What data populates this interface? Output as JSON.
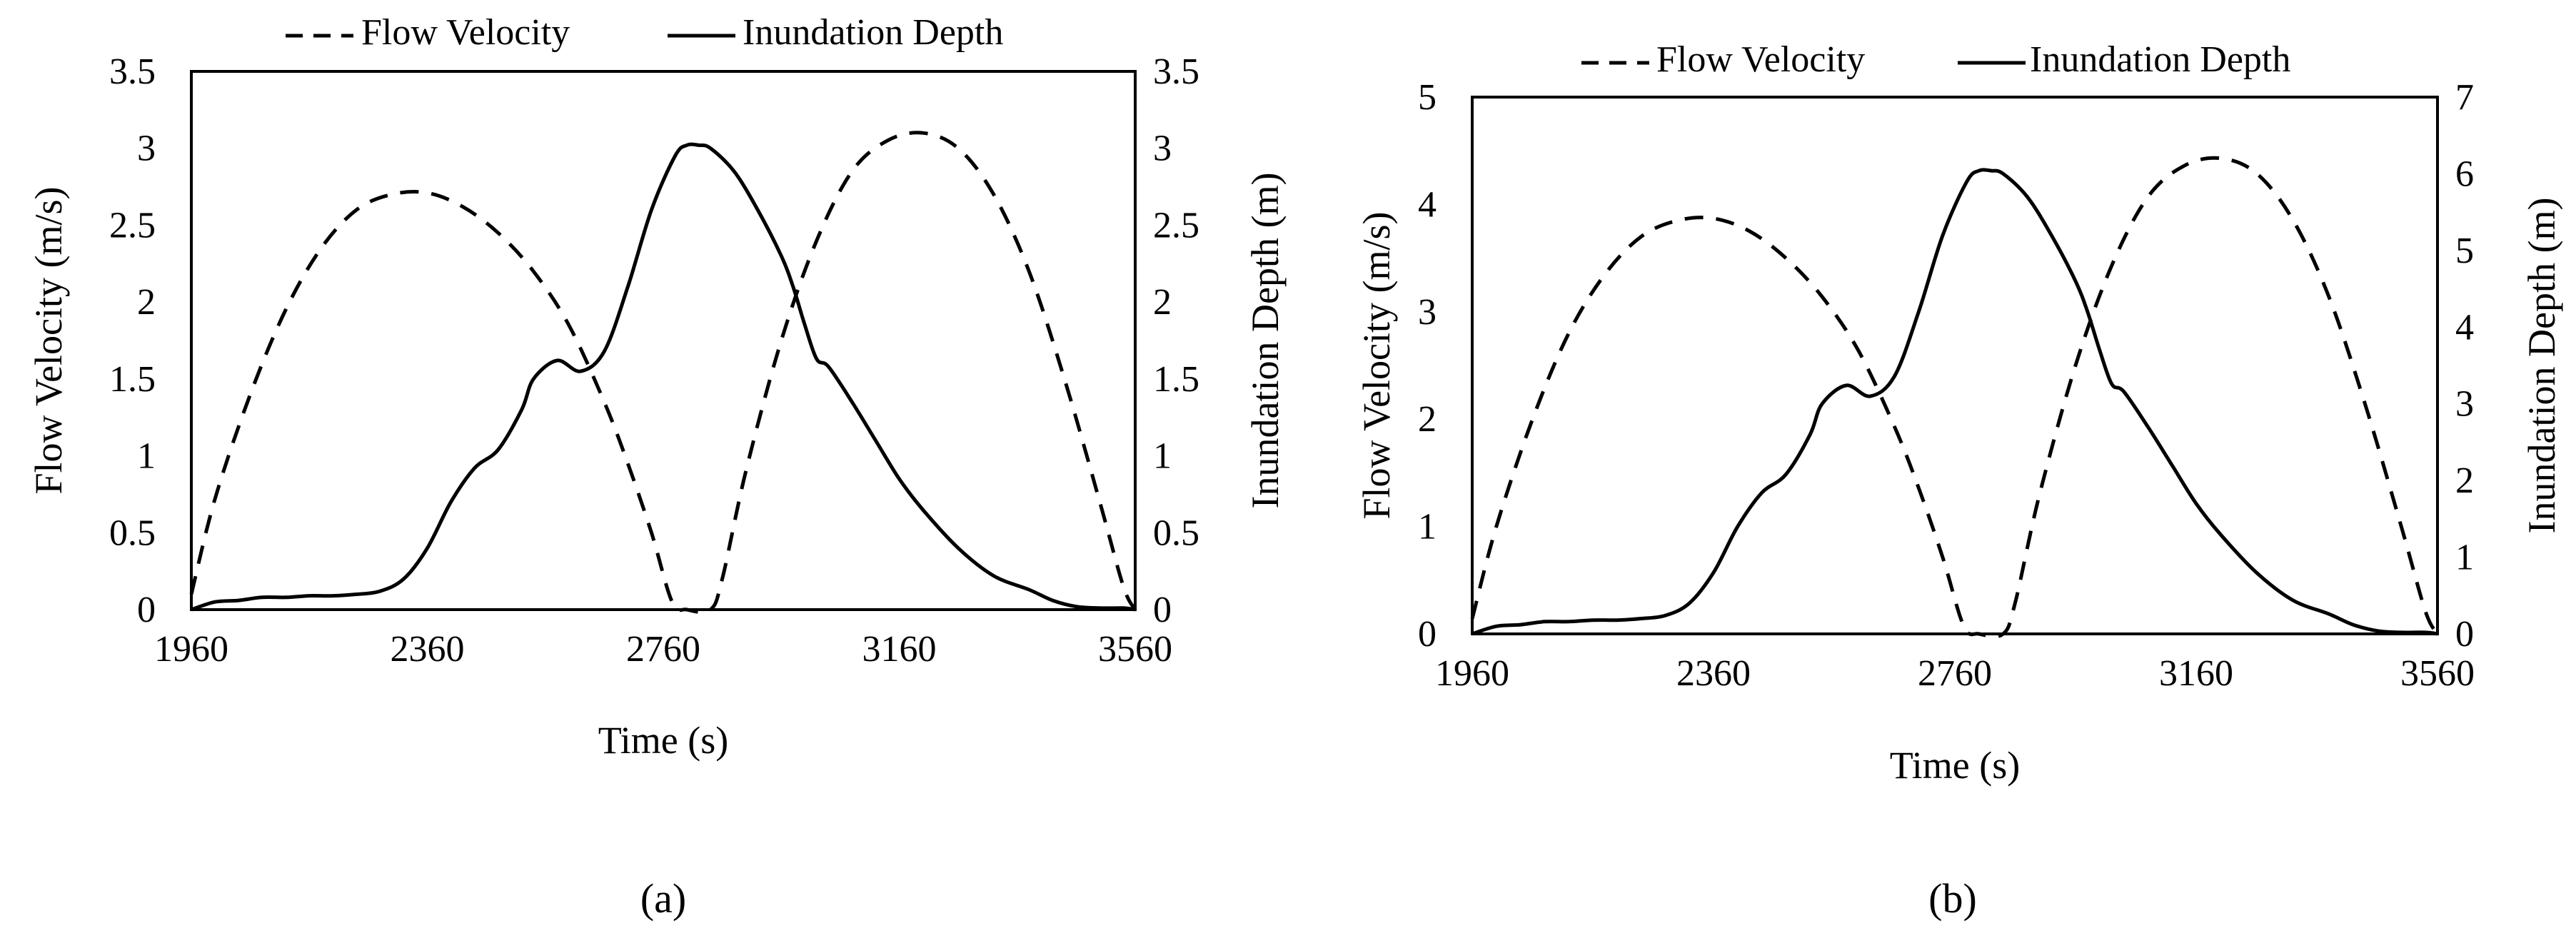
{
  "chart_data": [
    {
      "type": "line",
      "panel_label": "(a)",
      "xlabel": "Time (s)",
      "ylabel_left": "Flow Velocity (m/s)",
      "ylabel_right": "Inundation Depth (m)",
      "xlim": [
        1960,
        3560
      ],
      "ylim_left": [
        0,
        3.5
      ],
      "ylim_right": [
        0,
        3.5
      ],
      "x_ticks": [
        1960,
        2360,
        2760,
        3160,
        3560
      ],
      "y_ticks_left": [
        0,
        0.5,
        1,
        1.5,
        2,
        2.5,
        3,
        3.5
      ],
      "y_ticks_left_labels": [
        "0",
        "0.5",
        "1",
        "1.5",
        "2",
        "2.5",
        "3",
        "3.5"
      ],
      "y_ticks_right": [
        0,
        0.5,
        1,
        1.5,
        2,
        2.5,
        3,
        3.5
      ],
      "y_ticks_right_labels": [
        "0",
        "0.5",
        "1",
        "1.5",
        "2",
        "2.5",
        "3",
        "3.5"
      ],
      "legend_position": "top",
      "series": [
        {
          "name": "Flow Velocity",
          "axis": "left",
          "style": "dashed",
          "x": [
            1960,
            2000,
            2060,
            2120,
            2180,
            2240,
            2300,
            2360,
            2420,
            2480,
            2540,
            2600,
            2660,
            2700,
            2740,
            2775,
            2800,
            2840,
            2860,
            2900,
            2960,
            3020,
            3080,
            3140,
            3200,
            3260,
            3320,
            3380,
            3440,
            3500,
            3540,
            3560
          ],
          "y": [
            0.1,
            0.72,
            1.4,
            1.95,
            2.35,
            2.6,
            2.7,
            2.71,
            2.62,
            2.45,
            2.2,
            1.85,
            1.35,
            0.95,
            0.5,
            0.05,
            0,
            0,
            0.2,
            0.9,
            1.75,
            2.4,
            2.85,
            3.05,
            3.1,
            3.0,
            2.7,
            2.2,
            1.5,
            0.7,
            0.15,
            0
          ]
        },
        {
          "name": "Inundation Depth",
          "axis": "right",
          "style": "solid",
          "x": [
            1960,
            2000,
            2040,
            2080,
            2120,
            2160,
            2200,
            2240,
            2280,
            2320,
            2360,
            2400,
            2440,
            2480,
            2520,
            2540,
            2580,
            2620,
            2660,
            2700,
            2740,
            2780,
            2800,
            2820,
            2840,
            2880,
            2920,
            2960,
            2980,
            3000,
            3020,
            3040,
            3080,
            3120,
            3160,
            3200,
            3260,
            3320,
            3380,
            3420,
            3460,
            3500,
            3540,
            3560
          ],
          "y": [
            0,
            0.05,
            0.06,
            0.08,
            0.08,
            0.09,
            0.09,
            0.1,
            0.12,
            0.2,
            0.4,
            0.7,
            0.92,
            1.04,
            1.3,
            1.5,
            1.62,
            1.55,
            1.68,
            2.1,
            2.6,
            2.95,
            3.02,
            3.02,
            3.0,
            2.85,
            2.6,
            2.3,
            2.1,
            1.85,
            1.63,
            1.58,
            1.35,
            1.1,
            0.85,
            0.65,
            0.4,
            0.22,
            0.13,
            0.06,
            0.02,
            0.01,
            0.01,
            0
          ]
        }
      ]
    },
    {
      "type": "line",
      "panel_label": "(b)",
      "xlabel": "Time (s)",
      "ylabel_left": "Flow Velocity (m/s)",
      "ylabel_right": "Inundation Depth (m)",
      "xlim": [
        1960,
        3560
      ],
      "ylim_left": [
        0,
        5
      ],
      "ylim_right": [
        0,
        7
      ],
      "x_ticks": [
        1960,
        2360,
        2760,
        3160,
        3560
      ],
      "y_ticks_left": [
        0,
        1,
        2,
        3,
        4,
        5
      ],
      "y_ticks_left_labels": [
        "0",
        "1",
        "2",
        "3",
        "4",
        "5"
      ],
      "y_ticks_right": [
        0,
        1,
        2,
        3,
        4,
        5,
        6,
        7
      ],
      "y_ticks_right_labels": [
        "0",
        "1",
        "2",
        "3",
        "4",
        "5",
        "6",
        "7"
      ],
      "legend_position": "top",
      "series": [
        {
          "name": "Flow Velocity",
          "axis": "left",
          "style": "dashed",
          "x": [
            1960,
            2000,
            2060,
            2120,
            2180,
            2240,
            2300,
            2360,
            2420,
            2480,
            2540,
            2600,
            2660,
            2700,
            2740,
            2775,
            2800,
            2840,
            2860,
            2900,
            2960,
            3020,
            3080,
            3140,
            3200,
            3260,
            3320,
            3380,
            3440,
            3500,
            3540,
            3560
          ],
          "y": [
            0.14,
            1.0,
            2.0,
            2.8,
            3.35,
            3.7,
            3.85,
            3.87,
            3.75,
            3.5,
            3.14,
            2.64,
            1.93,
            1.36,
            0.71,
            0.07,
            0,
            0,
            0.29,
            1.29,
            2.5,
            3.43,
            4.07,
            4.36,
            4.43,
            4.29,
            3.86,
            3.14,
            2.14,
            1.0,
            0.21,
            0
          ]
        },
        {
          "name": "Inundation Depth",
          "axis": "right",
          "style": "solid",
          "x": [
            1960,
            2000,
            2040,
            2080,
            2120,
            2160,
            2200,
            2240,
            2280,
            2320,
            2360,
            2400,
            2440,
            2480,
            2520,
            2540,
            2580,
            2620,
            2660,
            2700,
            2740,
            2780,
            2800,
            2820,
            2840,
            2880,
            2920,
            2960,
            2980,
            3000,
            3020,
            3040,
            3080,
            3120,
            3160,
            3200,
            3260,
            3320,
            3380,
            3420,
            3460,
            3500,
            3540,
            3560
          ],
          "y": [
            0,
            0.1,
            0.12,
            0.16,
            0.16,
            0.18,
            0.18,
            0.2,
            0.24,
            0.4,
            0.8,
            1.4,
            1.84,
            2.08,
            2.6,
            3.0,
            3.24,
            3.1,
            3.36,
            4.2,
            5.2,
            5.9,
            6.04,
            6.04,
            6.0,
            5.7,
            5.2,
            4.6,
            4.2,
            3.7,
            3.26,
            3.16,
            2.7,
            2.2,
            1.7,
            1.3,
            0.8,
            0.44,
            0.26,
            0.12,
            0.04,
            0.02,
            0.02,
            0
          ]
        }
      ]
    }
  ]
}
